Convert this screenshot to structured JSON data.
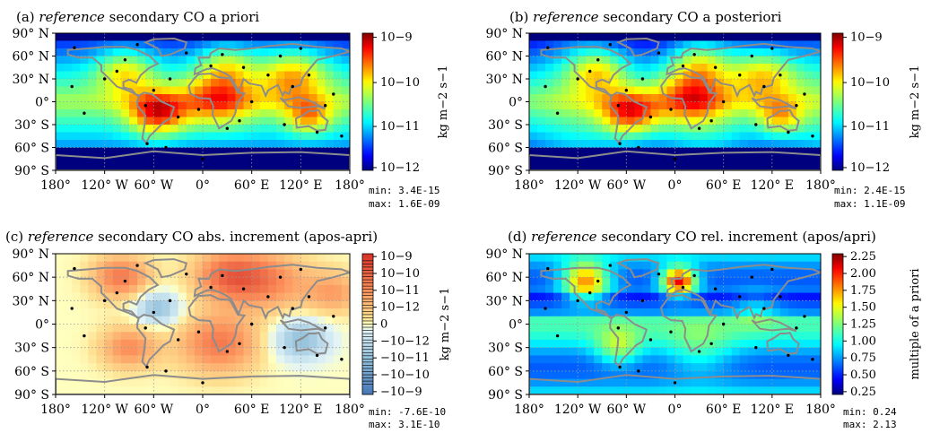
{
  "chart_data": [
    {
      "type": "heatmap",
      "title_prefix": "(a)",
      "title_ref": "reference",
      "title_rest": "secondary CO a priori",
      "colorbar": {
        "label": "kg m−2 s−1",
        "scale": "log",
        "range": [
          1e-12,
          1e-09
        ],
        "ticks": [
          "10−9",
          "10−10",
          "10−11",
          "10−12"
        ],
        "colormap": "jet"
      },
      "stats": [
        "min: 3.4E-15",
        "max: 1.6E-09"
      ],
      "grid": true
    },
    {
      "type": "heatmap",
      "title_prefix": "(b)",
      "title_ref": "reference",
      "title_rest": "secondary CO a posteriori",
      "colorbar": {
        "label": "kg m−2 s−1",
        "scale": "log",
        "range": [
          1e-12,
          1e-09
        ],
        "ticks": [
          "10−9",
          "10−10",
          "10−11",
          "10−12"
        ],
        "colormap": "jet"
      },
      "stats": [
        "min: 2.4E-15",
        "max: 1.1E-09"
      ],
      "grid": true
    },
    {
      "type": "heatmap",
      "title_prefix": "(c)",
      "title_ref": "reference",
      "title_rest": "secondary CO abs. increment (apos-apri)",
      "colorbar": {
        "label": "kg m−2 s−1",
        "scale": "symlog",
        "range": [
          -1e-09,
          1e-09
        ],
        "ticks": [
          "10−9",
          "10−10",
          "10−11",
          "10−12",
          "0",
          "−10−12",
          "−10−11",
          "−10−10",
          "−10−9"
        ],
        "colormap": "RdYlBu_r"
      },
      "stats": [
        "min: -7.6E-10",
        "max: 3.1E-10"
      ],
      "grid": true
    },
    {
      "type": "heatmap",
      "title_prefix": "(d)",
      "title_ref": "reference",
      "title_rest": "secondary CO rel. increment (apos/apri)",
      "colorbar": {
        "label": "multiple of a priori",
        "scale": "linear",
        "range": [
          0.25,
          2.3
        ],
        "ticks": [
          "2.25",
          "2.00",
          "1.75",
          "1.50",
          "1.25",
          "1.00",
          "0.75",
          "0.50",
          "0.25"
        ],
        "colormap": "jet"
      },
      "stats": [
        "min: 0.24",
        "max: 2.13"
      ],
      "grid": true
    }
  ],
  "axes": {
    "xticks": [
      "180°",
      "120° W",
      "60° W",
      "0°",
      "60° E",
      "120° E",
      "180°"
    ],
    "yticks": [
      "90° N",
      "60° N",
      "30° N",
      "0°",
      "30° S",
      "60° S",
      "90° S"
    ],
    "xlim": [
      -180,
      180
    ],
    "ylim": [
      -90,
      90
    ]
  },
  "colors": {
    "coastline": "#8c8c8c",
    "station": "#000000",
    "grid": "#9a9a9a"
  }
}
